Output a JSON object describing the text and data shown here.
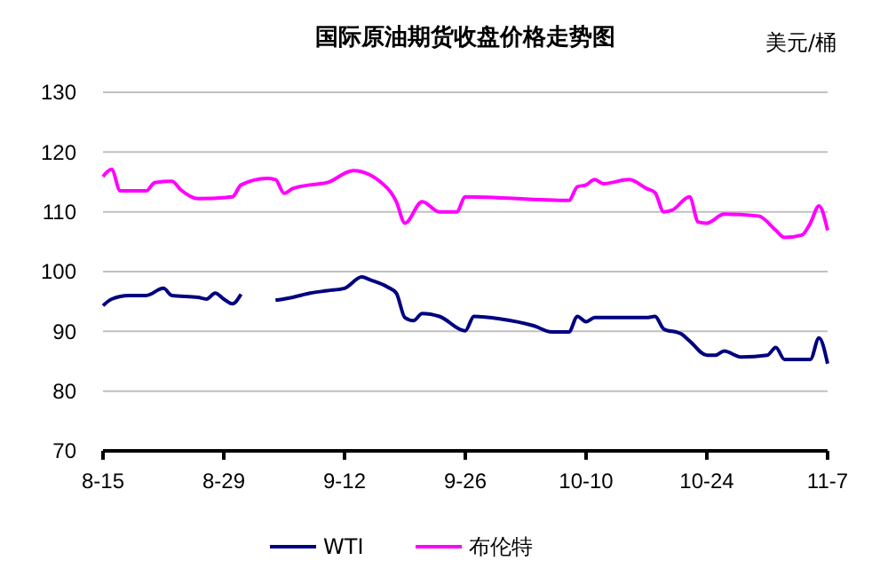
{
  "chart_data": {
    "type": "line",
    "title": "国际原油期货收盘价格走势图",
    "ylabel": "美元/桶",
    "ylim": [
      70,
      130
    ],
    "yticks": [
      70,
      80,
      90,
      100,
      110,
      120,
      130
    ],
    "xlim": [
      "--08-15",
      "--11-07"
    ],
    "xticks": [
      {
        "value": "--08-15",
        "label": "8-15"
      },
      {
        "value": "--08-29",
        "label": "8-29"
      },
      {
        "value": "--09-12",
        "label": "9-12"
      },
      {
        "value": "--09-26",
        "label": "9-26"
      },
      {
        "value": "--10-10",
        "label": "10-10"
      },
      {
        "value": "--10-24",
        "label": "10-24"
      },
      {
        "value": "--11-07",
        "label": "11-7"
      }
    ],
    "grid": "y",
    "legend": "bottom",
    "marker": "none",
    "line_style": "solid",
    "series": [
      {
        "name": "WTI",
        "color": "#000080",
        "x": [
          "--08-15",
          "--08-16",
          "--08-18",
          "--08-20",
          "--08-22",
          "--08-23",
          "--08-26",
          "--08-27",
          "--08-28",
          "--08-29",
          "--08-30",
          "--08-31",
          "--09-02",
          "--09-04",
          "--09-06",
          "--09-08",
          "--09-10",
          "--09-12",
          "--09-14",
          "--09-15",
          "--09-17",
          "--09-18",
          "--09-19",
          "--09-20",
          "--09-21",
          "--09-23",
          "--09-26",
          "--09-27",
          "--09-30",
          "--10-04",
          "--10-06",
          "--10-08",
          "--10-09",
          "--10-10",
          "--10-11",
          "--10-17",
          "--10-18",
          "--10-19",
          "--10-21",
          "--10-22",
          "--10-24",
          "--10-25",
          "--10-26",
          "--10-28",
          "--10-31",
          "--11-01",
          "--11-02",
          "--11-05",
          "--11-06",
          "--11-07"
        ],
        "values": [
          94.3,
          95.4,
          96.0,
          96.0,
          97.2,
          96.0,
          95.7,
          95.4,
          96.4,
          95.4,
          94.6,
          96.2,
          null,
          95.2,
          95.7,
          96.4,
          96.8,
          97.2,
          99.1,
          98.6,
          97.4,
          96.4,
          92.3,
          91.8,
          93.0,
          92.5,
          90.1,
          92.5,
          92.1,
          90.9,
          89.9,
          89.9,
          92.5,
          91.6,
          92.3,
          92.3,
          92.5,
          90.4,
          89.6,
          88.4,
          86.0,
          86.0,
          86.7,
          85.7,
          86.0,
          87.3,
          85.3,
          85.3,
          88.9,
          84.6
        ]
      },
      {
        "name": "布伦特",
        "color": "#ff00ff",
        "x": [
          "--08-15",
          "--08-16",
          "--08-17",
          "--08-20",
          "--08-21",
          "--08-23",
          "--08-24",
          "--08-26",
          "--08-30",
          "--08-31",
          "--09-03",
          "--09-04",
          "--09-05",
          "--09-06",
          "--09-08",
          "--09-10",
          "--09-13",
          "--09-17",
          "--09-18",
          "--09-19",
          "--09-21",
          "--09-23",
          "--09-25",
          "--09-26",
          "--10-08",
          "--10-09",
          "--10-10",
          "--10-11",
          "--10-12",
          "--10-15",
          "--10-17",
          "--10-18",
          "--10-19",
          "--10-20",
          "--10-22",
          "--10-23",
          "--10-24",
          "--10-26",
          "--10-30",
          "--11-01",
          "--11-02",
          "--11-04",
          "--11-05",
          "--11-06",
          "--11-07"
        ],
        "values": [
          115.9,
          117.1,
          113.5,
          113.5,
          114.9,
          115.1,
          113.7,
          112.2,
          112.5,
          114.5,
          115.6,
          115.4,
          113.1,
          113.9,
          114.5,
          114.9,
          116.9,
          113.9,
          111.7,
          108.1,
          111.7,
          110.0,
          110.0,
          112.5,
          111.9,
          114.2,
          114.5,
          115.4,
          114.7,
          115.4,
          113.9,
          113.2,
          110.0,
          110.3,
          112.5,
          108.3,
          108.1,
          109.6,
          109.3,
          106.9,
          105.7,
          106.1,
          108.1,
          111.0,
          106.9
        ]
      }
    ]
  }
}
